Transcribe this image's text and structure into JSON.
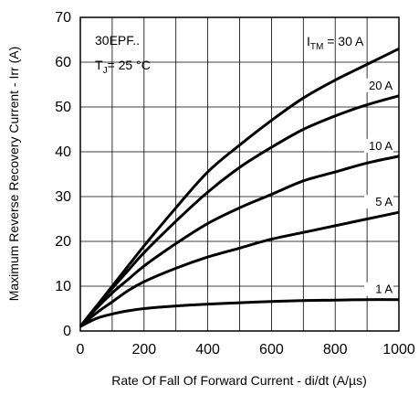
{
  "chart_data": {
    "type": "line",
    "xlabel": "Rate Of Fall Of Forward Current - di/dt (A/µs)",
    "ylabel": "Maximum Reverse Recovery Current - Irr (A)",
    "xlim": [
      0,
      1000
    ],
    "ylim": [
      0,
      70
    ],
    "x_ticks": [
      0,
      200,
      400,
      600,
      800,
      1000
    ],
    "y_ticks": [
      0,
      10,
      20,
      30,
      40,
      50,
      60,
      70
    ],
    "x_gridlines": [
      0,
      100,
      200,
      300,
      400,
      500,
      600,
      700,
      800,
      900,
      1000
    ],
    "y_gridlines": [
      0,
      10,
      20,
      30,
      40,
      50,
      60,
      70
    ],
    "grid": true,
    "annotation": {
      "device": "30EPF..",
      "temp_main": "T",
      "temp_sub": "J",
      "temp_rest": "= 25 °C"
    },
    "legend_header": {
      "main": "I",
      "sub": "TM",
      "rest": " = 30 A"
    },
    "series": [
      {
        "name": "30 A",
        "label": "",
        "x": [
          0,
          50,
          100,
          150,
          200,
          300,
          400,
          500,
          600,
          700,
          800,
          900,
          1000
        ],
        "y": [
          1,
          5.5,
          10,
          14.5,
          19,
          27.5,
          35.5,
          41.5,
          47,
          52,
          56,
          59.5,
          63
        ]
      },
      {
        "name": "20 A",
        "label": "20 A",
        "x": [
          0,
          50,
          100,
          150,
          200,
          300,
          400,
          500,
          600,
          700,
          800,
          900,
          1000
        ],
        "y": [
          1,
          5.5,
          9.5,
          13.5,
          17.5,
          24.5,
          31,
          36.5,
          41,
          45,
          48,
          50.5,
          52.5
        ]
      },
      {
        "name": "10 A",
        "label": "10 A",
        "x": [
          0,
          50,
          100,
          150,
          200,
          300,
          400,
          500,
          600,
          700,
          800,
          900,
          1000
        ],
        "y": [
          1,
          5,
          8.5,
          11.5,
          14.5,
          19.5,
          24,
          27.5,
          30.5,
          33.5,
          35.5,
          37.5,
          39
        ]
      },
      {
        "name": "5 A",
        "label": "5 A",
        "x": [
          0,
          50,
          100,
          150,
          200,
          300,
          400,
          500,
          600,
          700,
          800,
          900,
          1000
        ],
        "y": [
          1,
          4,
          6.5,
          9,
          11,
          14,
          16.5,
          18.5,
          20.5,
          22,
          23.5,
          25,
          26.5
        ]
      },
      {
        "name": "1 A",
        "label": "1 A",
        "x": [
          0,
          50,
          100,
          150,
          200,
          300,
          400,
          500,
          600,
          700,
          800,
          900,
          1000
        ],
        "y": [
          1,
          2.8,
          3.8,
          4.5,
          5,
          5.6,
          6,
          6.3,
          6.6,
          6.8,
          6.9,
          7,
          7
        ]
      }
    ]
  }
}
